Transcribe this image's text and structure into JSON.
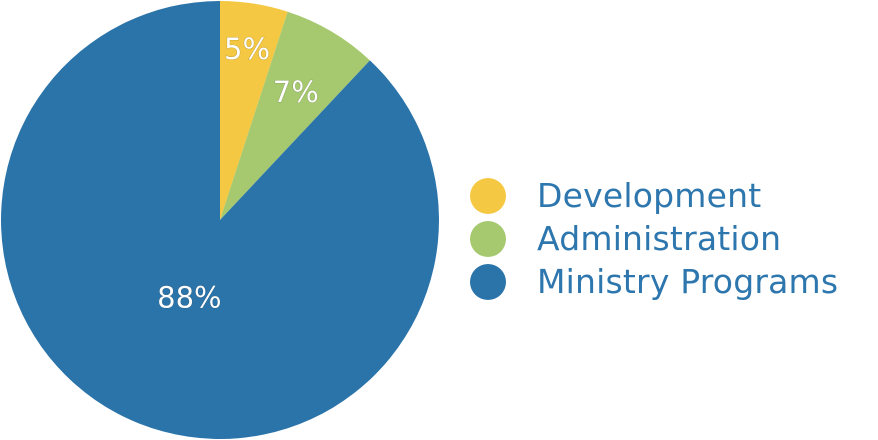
{
  "chart_data": {
    "type": "pie",
    "slices": [
      {
        "label": "Development",
        "value": 5,
        "value_label": "5%",
        "color": "#f4c842"
      },
      {
        "label": "Administration",
        "value": 7,
        "value_label": "7%",
        "color": "#a6c96f"
      },
      {
        "label": "Ministry Programs",
        "value": 88,
        "value_label": "88%",
        "color": "#2b74aa"
      }
    ],
    "legend_position": "right",
    "legend_text_color": "#2e77ae"
  }
}
